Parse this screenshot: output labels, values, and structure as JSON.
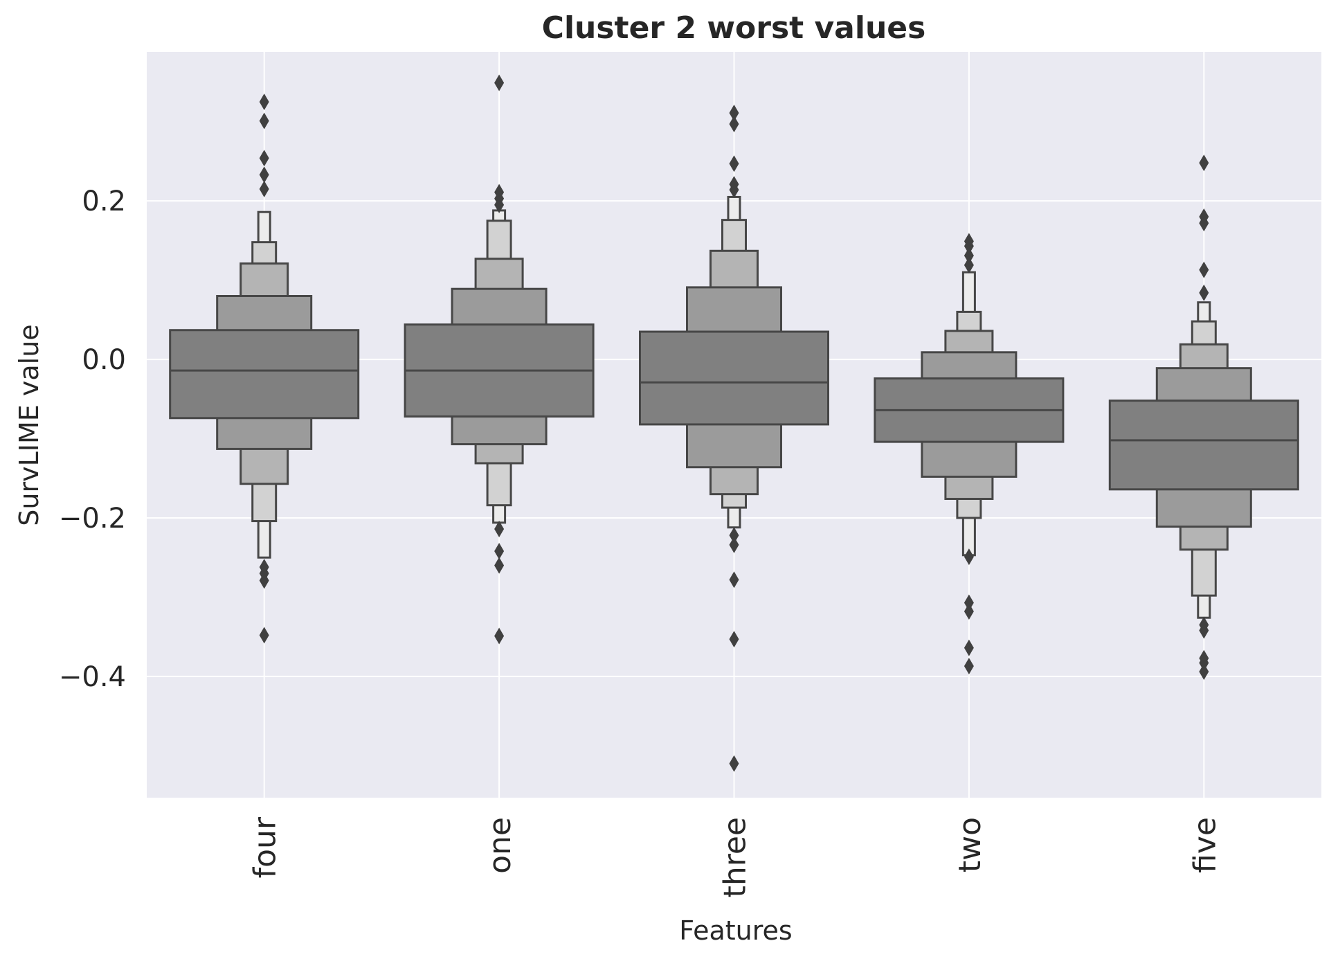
{
  "chart_data": {
    "type": "boxen",
    "title": "Cluster 2 worst values",
    "xlabel": "Features",
    "ylabel": "SurvLIME value",
    "ylim": [
      -0.553,
      0.388
    ],
    "yticks": [
      0.2,
      0.0,
      -0.2,
      -0.4
    ],
    "ytick_labels": [
      "0.2",
      "0.0",
      "−0.2",
      "−0.4"
    ],
    "grid": true,
    "categories": [
      "four",
      "one",
      "three",
      "two",
      "five"
    ],
    "level_colors": [
      "#808080",
      "#9b9b9b",
      "#b4b4b4",
      "#d2d2d2",
      "#ececec"
    ],
    "outlier_color": "#404040",
    "series": [
      {
        "median": -0.014,
        "levels": [
          [
            -0.074,
            0.037
          ],
          [
            -0.113,
            0.08
          ],
          [
            -0.157,
            0.121
          ],
          [
            -0.204,
            0.148
          ],
          [
            -0.25,
            0.186
          ]
        ],
        "outliers": [
          0.325,
          0.301,
          0.254,
          0.233,
          0.215,
          -0.262,
          -0.27,
          -0.279,
          -0.348
        ]
      },
      {
        "median": -0.014,
        "levels": [
          [
            -0.072,
            0.044
          ],
          [
            -0.107,
            0.089
          ],
          [
            -0.131,
            0.127
          ],
          [
            -0.184,
            0.175
          ],
          [
            -0.206,
            0.188
          ]
        ],
        "outliers": [
          0.349,
          0.211,
          0.203,
          0.195,
          -0.214,
          -0.242,
          -0.26,
          -0.349
        ]
      },
      {
        "median": -0.029,
        "levels": [
          [
            -0.082,
            0.035
          ],
          [
            -0.136,
            0.091
          ],
          [
            -0.17,
            0.137
          ],
          [
            -0.187,
            0.176
          ],
          [
            -0.212,
            0.205
          ]
        ],
        "outliers": [
          0.311,
          0.297,
          0.247,
          0.221,
          0.214,
          -0.222,
          -0.234,
          -0.278,
          -0.353,
          -0.51
        ]
      },
      {
        "median": -0.064,
        "levels": [
          [
            -0.104,
            -0.024
          ],
          [
            -0.148,
            0.009
          ],
          [
            -0.176,
            0.036
          ],
          [
            -0.2,
            0.06
          ],
          [
            -0.247,
            0.11
          ]
        ],
        "outliers": [
          0.149,
          0.143,
          0.131,
          0.119,
          -0.249,
          -0.307,
          -0.318,
          -0.364,
          -0.387
        ]
      },
      {
        "median": -0.102,
        "levels": [
          [
            -0.164,
            -0.052
          ],
          [
            -0.211,
            -0.011
          ],
          [
            -0.24,
            0.019
          ],
          [
            -0.298,
            0.048
          ],
          [
            -0.326,
            0.072
          ]
        ],
        "outliers": [
          0.248,
          0.18,
          0.172,
          0.113,
          0.084,
          -0.335,
          -0.342,
          -0.377,
          -0.383,
          -0.394
        ]
      }
    ]
  }
}
